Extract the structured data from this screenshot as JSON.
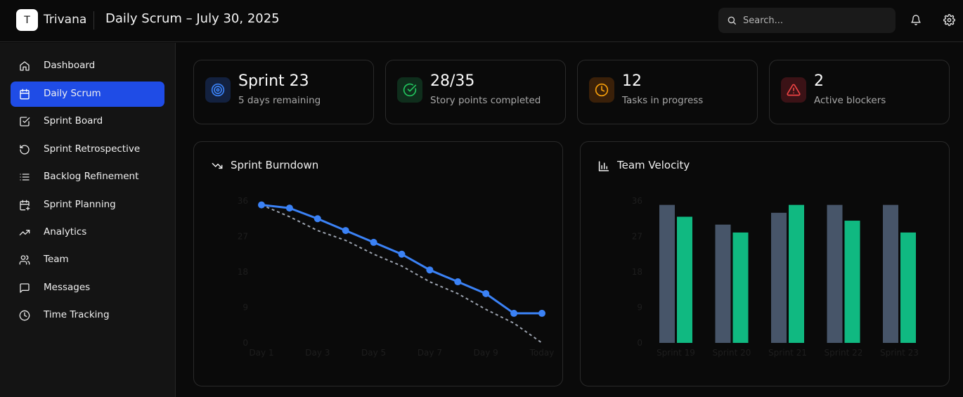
{
  "header": {
    "logo_letter": "T",
    "app_name": "Trivana",
    "page_title": "Daily Scrum – July 30, 2025",
    "search_placeholder": "Search...",
    "icons": [
      "search-icon",
      "bell-icon",
      "gear-icon"
    ]
  },
  "sidebar": {
    "items": [
      {
        "label": "Dashboard",
        "icon": "home-icon",
        "active": false
      },
      {
        "label": "Daily Scrum",
        "icon": "calendar-icon",
        "active": true
      },
      {
        "label": "Sprint Board",
        "icon": "check-square-icon",
        "active": false
      },
      {
        "label": "Sprint Retrospective",
        "icon": "rotate-icon",
        "active": false
      },
      {
        "label": "Backlog Refinement",
        "icon": "list-icon",
        "active": false
      },
      {
        "label": "Sprint Planning",
        "icon": "calendar-plus-icon",
        "active": false
      },
      {
        "label": "Analytics",
        "icon": "trending-up-icon",
        "active": false
      },
      {
        "label": "Team",
        "icon": "users-icon",
        "active": false
      },
      {
        "label": "Messages",
        "icon": "message-icon",
        "active": false
      },
      {
        "label": "Time Tracking",
        "icon": "clock-icon",
        "active": false
      }
    ]
  },
  "stats": [
    {
      "value": "Sprint 23",
      "label": "5 days remaining",
      "icon": "target-icon",
      "color": "#3b82f6"
    },
    {
      "value": "28/35",
      "label": "Story points completed",
      "icon": "check-circle-icon",
      "color": "#22c55e"
    },
    {
      "value": "12",
      "label": "Tasks in progress",
      "icon": "clock-icon",
      "color": "#f59e0b"
    },
    {
      "value": "2",
      "label": "Active blockers",
      "icon": "alert-triangle-icon",
      "color": "#ef4444"
    }
  ],
  "burndown": {
    "title": "Sprint Burndown",
    "icon": "trending-down-icon",
    "chart_data": {
      "type": "line",
      "x": [
        "Day 1",
        "Day 2",
        "Day 3",
        "Day 4",
        "Day 5",
        "Day 6",
        "Day 7",
        "Day 8",
        "Day 9",
        "Day 10",
        "Today"
      ],
      "x_tick_labels": [
        "Day 1",
        "Day 3",
        "Day 5",
        "Day 7",
        "Day 9",
        "Today"
      ],
      "y_ticks": [
        0,
        9,
        18,
        27,
        36
      ],
      "ylim": [
        0,
        36
      ],
      "series": [
        {
          "values": [
            35,
            34.2,
            31.5,
            28.5,
            25.5,
            22.5,
            18.5,
            15.5,
            12.5,
            7.5,
            7.5
          ],
          "color": "#3b82f6",
          "style": "solid"
        },
        {
          "values": [
            35,
            32,
            28.5,
            26,
            22.5,
            19.5,
            15.5,
            12.5,
            8.5,
            5,
            0
          ],
          "color": "#9ca3af",
          "style": "dashed"
        }
      ]
    }
  },
  "velocity": {
    "title": "Team Velocity",
    "icon": "bar-chart-icon",
    "chart_data": {
      "type": "bar",
      "categories": [
        "Sprint 19",
        "Sprint 20",
        "Sprint 21",
        "Sprint 22",
        "Sprint 23"
      ],
      "y_ticks": [
        0,
        9,
        18,
        27,
        36
      ],
      "ylim": [
        0,
        36
      ],
      "series": [
        {
          "values": [
            35,
            30,
            33,
            35,
            35
          ],
          "color": "#475569"
        },
        {
          "values": [
            32,
            28,
            35,
            31,
            28
          ],
          "color": "#10b981"
        }
      ]
    }
  }
}
